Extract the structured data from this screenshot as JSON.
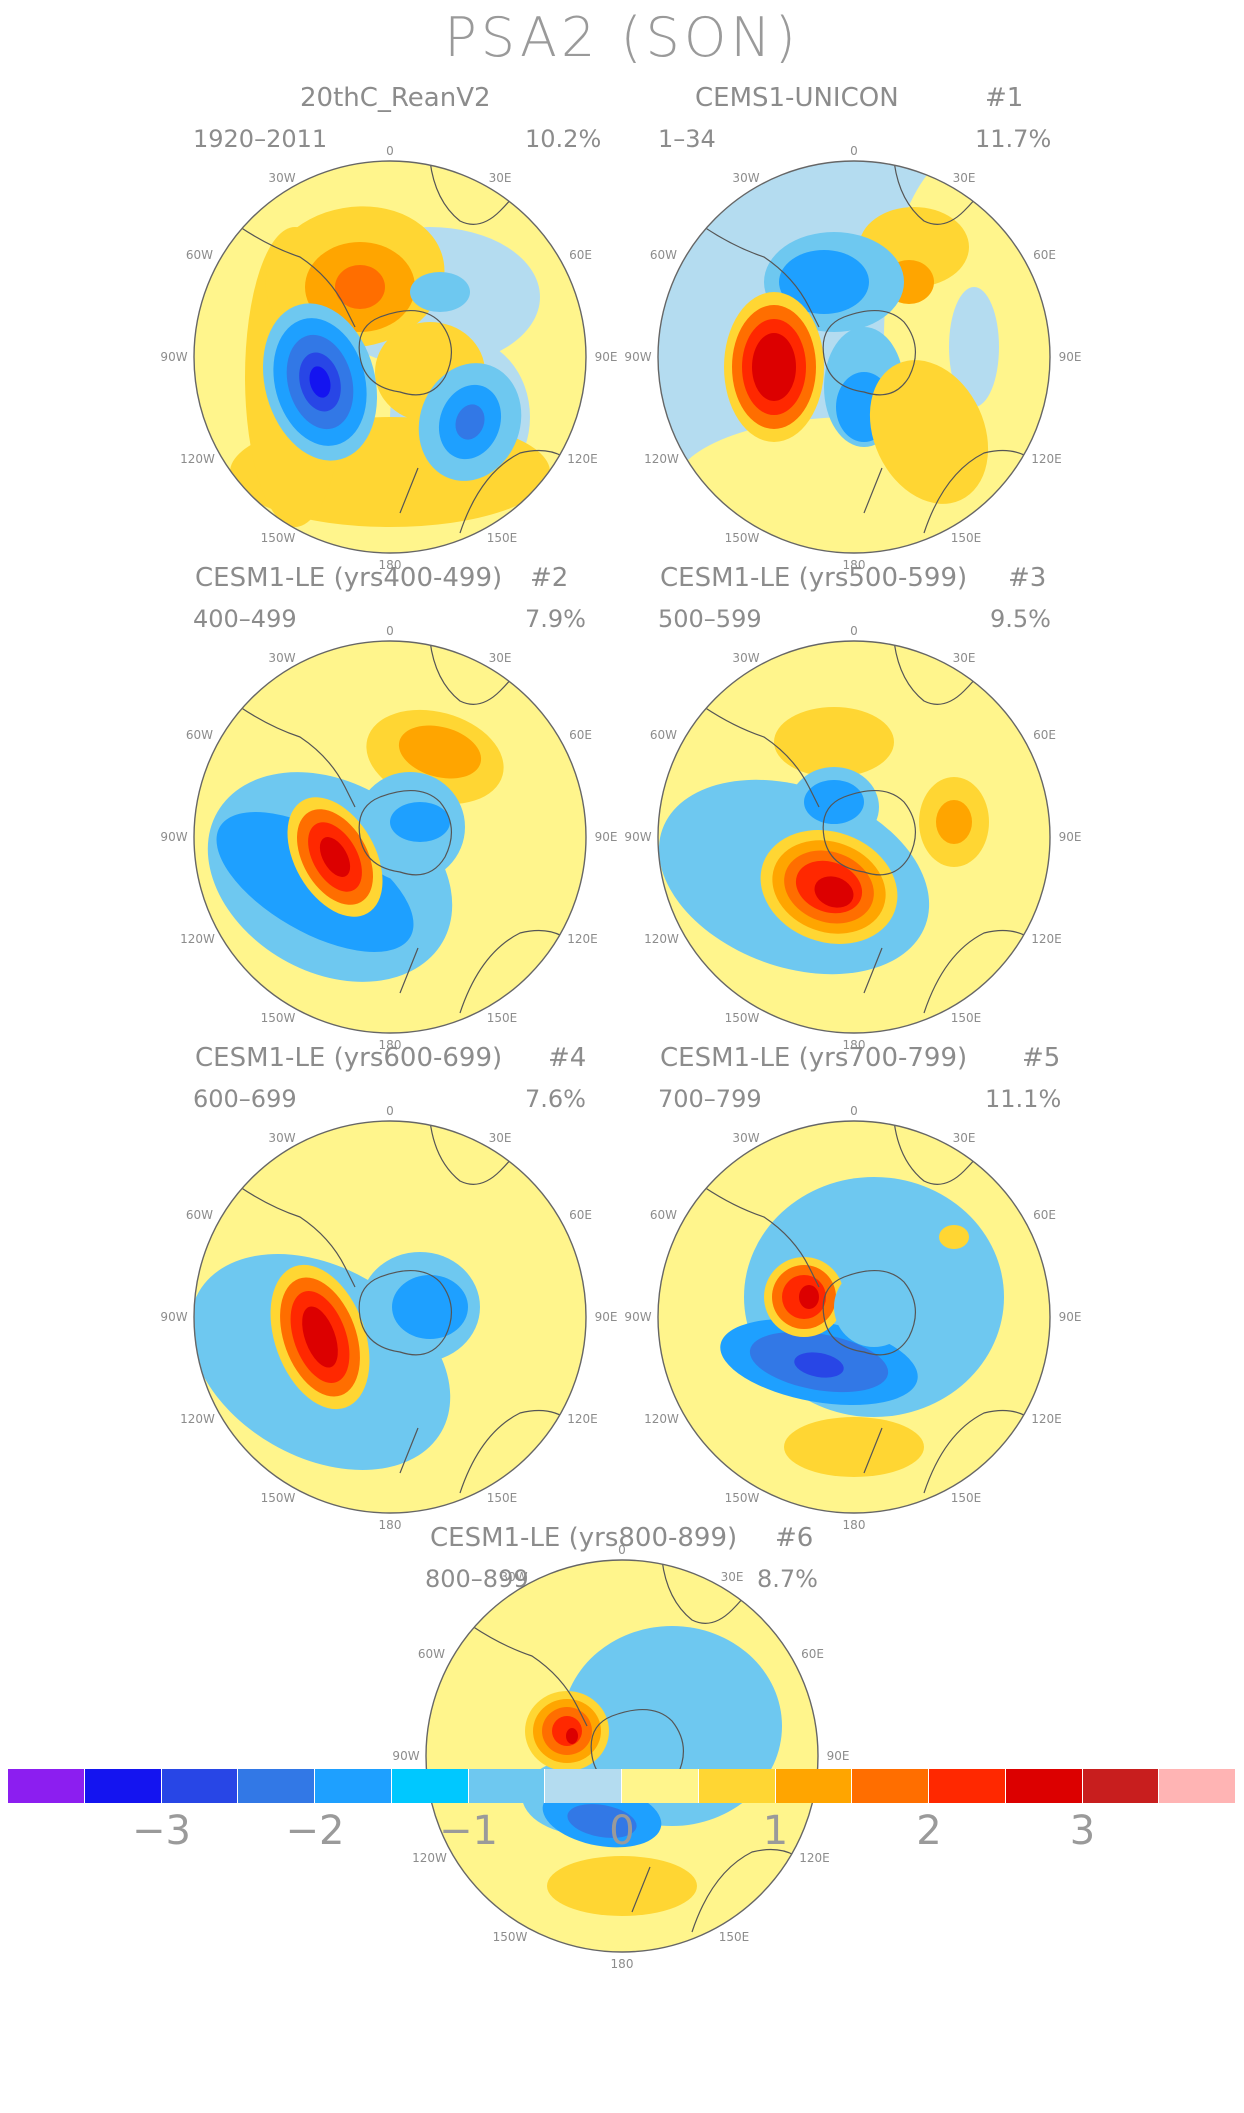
{
  "title": "PSA2 (SON)",
  "panels": [
    {
      "title": "20thC_ReanV2",
      "left": "1920–2011",
      "right": "10.2%",
      "number": "",
      "blobs": [
        {
          "dx": 0,
          "dy": 115,
          "rx": 160,
          "ry": 55,
          "color": "#ffd633",
          "rot": 0
        },
        {
          "dx": -95,
          "dy": 20,
          "rx": 50,
          "ry": 150,
          "color": "#ffd633",
          "rot": 0
        },
        {
          "dx": -35,
          "dy": -80,
          "rx": 90,
          "ry": 70,
          "color": "#ffd633",
          "rot": -10
        },
        {
          "dx": -30,
          "dy": -70,
          "rx": 55,
          "ry": 45,
          "color": "#ffa500",
          "rot": 0
        },
        {
          "dx": -30,
          "dy": -70,
          "rx": 25,
          "ry": 22,
          "color": "#ff6e00",
          "rot": 0
        },
        {
          "dx": 50,
          "dy": -65,
          "rx": 30,
          "ry": 20,
          "color": "#6ec8f0",
          "rot": 0
        },
        {
          "dx": 40,
          "dy": 15,
          "rx": 55,
          "ry": 50,
          "color": "#ffd633",
          "rot": 0
        },
        {
          "dx": -70,
          "dy": 25,
          "rx": 55,
          "ry": 80,
          "color": "#6ec8f0",
          "rot": -15
        },
        {
          "dx": -70,
          "dy": 25,
          "rx": 45,
          "ry": 65,
          "color": "#1ea0ff",
          "rot": -15
        },
        {
          "dx": -70,
          "dy": 25,
          "rx": 32,
          "ry": 48,
          "color": "#3278e6",
          "rot": -15
        },
        {
          "dx": -70,
          "dy": 25,
          "rx": 20,
          "ry": 30,
          "color": "#2846e6",
          "rot": -15
        },
        {
          "dx": -70,
          "dy": 25,
          "rx": 10,
          "ry": 16,
          "color": "#1414f0",
          "rot": -15
        },
        {
          "dx": 80,
          "dy": 65,
          "rx": 50,
          "ry": 60,
          "color": "#6ec8f0",
          "rot": 20
        },
        {
          "dx": 80,
          "dy": 65,
          "rx": 30,
          "ry": 38,
          "color": "#1ea0ff",
          "rot": 20
        },
        {
          "dx": 80,
          "dy": 65,
          "rx": 14,
          "ry": 18,
          "color": "#3278e6",
          "rot": 20
        }
      ]
    },
    {
      "title": "CEMS1-UNICON",
      "left": "1–34",
      "right": "11.7%",
      "number": "#1",
      "blobs": [
        {
          "dx": 60,
          "dy": -110,
          "rx": 55,
          "ry": 40,
          "color": "#ffd633",
          "rot": 0
        },
        {
          "dx": 55,
          "dy": -75,
          "rx": 25,
          "ry": 22,
          "color": "#ffa500",
          "rot": 0
        },
        {
          "dx": 120,
          "dy": -10,
          "rx": 25,
          "ry": 60,
          "color": "#b4dcf0",
          "rot": 0
        },
        {
          "dx": -20,
          "dy": -75,
          "rx": 70,
          "ry": 50,
          "color": "#6ec8f0",
          "rot": 0
        },
        {
          "dx": -30,
          "dy": -75,
          "rx": 45,
          "ry": 32,
          "color": "#1ea0ff",
          "rot": 0
        },
        {
          "dx": -80,
          "dy": 10,
          "rx": 50,
          "ry": 75,
          "color": "#ffd633",
          "rot": 0
        },
        {
          "dx": -80,
          "dy": 10,
          "rx": 42,
          "ry": 62,
          "color": "#ff6e00",
          "rot": 0
        },
        {
          "dx": -80,
          "dy": 10,
          "rx": 32,
          "ry": 48,
          "color": "#ff2800",
          "rot": 0
        },
        {
          "dx": -80,
          "dy": 10,
          "rx": 22,
          "ry": 34,
          "color": "#dc0000",
          "rot": 0
        },
        {
          "dx": 10,
          "dy": 30,
          "rx": 40,
          "ry": 60,
          "color": "#6ec8f0",
          "rot": 0
        },
        {
          "dx": 10,
          "dy": 50,
          "rx": 28,
          "ry": 35,
          "color": "#1ea0ff",
          "rot": 0
        },
        {
          "dx": 75,
          "dy": 75,
          "rx": 55,
          "ry": 75,
          "color": "#ffd633",
          "rot": -25
        }
      ]
    },
    {
      "title": "CESM1-LE (yrs400-499)",
      "left": "400–499",
      "right": "7.9%",
      "number": "#2",
      "blobs": [
        {
          "dx": 45,
          "dy": -80,
          "rx": 70,
          "ry": 45,
          "color": "#ffd633",
          "rot": 15
        },
        {
          "dx": 50,
          "dy": -85,
          "rx": 42,
          "ry": 25,
          "color": "#ffa500",
          "rot": 15
        },
        {
          "dx": -60,
          "dy": 40,
          "rx": 130,
          "ry": 95,
          "color": "#6ec8f0",
          "rot": 30
        },
        {
          "dx": -75,
          "dy": 45,
          "rx": 110,
          "ry": 50,
          "color": "#1ea0ff",
          "rot": 30
        },
        {
          "dx": 20,
          "dy": -10,
          "rx": 55,
          "ry": 55,
          "color": "#6ec8f0",
          "rot": 0
        },
        {
          "dx": 30,
          "dy": -15,
          "rx": 30,
          "ry": 20,
          "color": "#1ea0ff",
          "rot": 0
        },
        {
          "dx": -55,
          "dy": 20,
          "rx": 40,
          "ry": 65,
          "color": "#ffd633",
          "rot": -30
        },
        {
          "dx": -55,
          "dy": 20,
          "rx": 32,
          "ry": 52,
          "color": "#ff6e00",
          "rot": -30
        },
        {
          "dx": -55,
          "dy": 20,
          "rx": 22,
          "ry": 38,
          "color": "#ff2800",
          "rot": -30
        },
        {
          "dx": -55,
          "dy": 20,
          "rx": 12,
          "ry": 22,
          "color": "#dc0000",
          "rot": -30
        }
      ]
    },
    {
      "title": "CESM1-LE (yrs500-599)",
      "left": "500–599",
      "right": "9.5%",
      "number": "#3",
      "blobs": [
        {
          "dx": -20,
          "dy": -95,
          "rx": 60,
          "ry": 35,
          "color": "#ffd633",
          "rot": 0
        },
        {
          "dx": 100,
          "dy": -15,
          "rx": 35,
          "ry": 45,
          "color": "#ffd633",
          "rot": 0
        },
        {
          "dx": 100,
          "dy": -15,
          "rx": 18,
          "ry": 22,
          "color": "#ffa500",
          "rot": 0
        },
        {
          "dx": -60,
          "dy": 40,
          "rx": 140,
          "ry": 90,
          "color": "#6ec8f0",
          "rot": 20
        },
        {
          "dx": -20,
          "dy": -30,
          "rx": 45,
          "ry": 40,
          "color": "#6ec8f0",
          "rot": 0
        },
        {
          "dx": -20,
          "dy": -35,
          "rx": 30,
          "ry": 22,
          "color": "#1ea0ff",
          "rot": 0
        },
        {
          "dx": -25,
          "dy": 50,
          "rx": 70,
          "ry": 55,
          "color": "#ffd633",
          "rot": 20
        },
        {
          "dx": -25,
          "dy": 50,
          "rx": 58,
          "ry": 45,
          "color": "#ffa500",
          "rot": 20
        },
        {
          "dx": -25,
          "dy": 50,
          "rx": 46,
          "ry": 35,
          "color": "#ff6e00",
          "rot": 20
        },
        {
          "dx": -25,
          "dy": 50,
          "rx": 34,
          "ry": 25,
          "color": "#ff2800",
          "rot": 20
        },
        {
          "dx": -20,
          "dy": 55,
          "rx": 20,
          "ry": 15,
          "color": "#dc0000",
          "rot": 20
        }
      ]
    },
    {
      "title": "CESM1-LE (yrs600-699)",
      "left": "600–699",
      "right": "7.6%",
      "number": "#4",
      "blobs": [
        {
          "dx": -70,
          "dy": 45,
          "rx": 140,
          "ry": 95,
          "color": "#6ec8f0",
          "rot": 30
        },
        {
          "dx": 30,
          "dy": -10,
          "rx": 60,
          "ry": 55,
          "color": "#6ec8f0",
          "rot": 0
        },
        {
          "dx": 40,
          "dy": -10,
          "rx": 38,
          "ry": 32,
          "color": "#1ea0ff",
          "rot": 0
        },
        {
          "dx": -70,
          "dy": 20,
          "rx": 45,
          "ry": 75,
          "color": "#ffd633",
          "rot": -20
        },
        {
          "dx": -70,
          "dy": 20,
          "rx": 36,
          "ry": 62,
          "color": "#ff6e00",
          "rot": -20
        },
        {
          "dx": -70,
          "dy": 20,
          "rx": 26,
          "ry": 48,
          "color": "#ff2800",
          "rot": -20
        },
        {
          "dx": -70,
          "dy": 20,
          "rx": 15,
          "ry": 32,
          "color": "#dc0000",
          "rot": -20
        }
      ]
    },
    {
      "title": "CESM1-LE (yrs700-799)",
      "left": "700–799",
      "right": "11.1%",
      "number": "#5",
      "blobs": [
        {
          "dx": 20,
          "dy": -20,
          "rx": 130,
          "ry": 120,
          "color": "#6ec8f0",
          "rot": 0
        },
        {
          "dx": 100,
          "dy": -80,
          "rx": 15,
          "ry": 12,
          "color": "#ffd633",
          "rot": 0
        },
        {
          "dx": 0,
          "dy": 130,
          "rx": 70,
          "ry": 30,
          "color": "#ffd633",
          "rot": 0
        },
        {
          "dx": -35,
          "dy": 45,
          "rx": 100,
          "ry": 40,
          "color": "#1ea0ff",
          "rot": 10
        },
        {
          "dx": -35,
          "dy": 45,
          "rx": 70,
          "ry": 28,
          "color": "#3278e6",
          "rot": 10
        },
        {
          "dx": -35,
          "dy": 48,
          "rx": 25,
          "ry": 12,
          "color": "#2846e6",
          "rot": 10
        },
        {
          "dx": -50,
          "dy": -20,
          "rx": 40,
          "ry": 40,
          "color": "#ffd633",
          "rot": 0
        },
        {
          "dx": -50,
          "dy": -20,
          "rx": 32,
          "ry": 32,
          "color": "#ff6e00",
          "rot": 0
        },
        {
          "dx": -50,
          "dy": -20,
          "rx": 22,
          "ry": 22,
          "color": "#ff2800",
          "rot": 0
        },
        {
          "dx": -45,
          "dy": -20,
          "rx": 10,
          "ry": 12,
          "color": "#dc0000",
          "rot": 0
        },
        {
          "dx": 20,
          "dy": -10,
          "rx": 40,
          "ry": 40,
          "color": "#6ec8f0",
          "rot": 0
        }
      ]
    },
    {
      "title": "CESM1-LE (yrs800-899)",
      "left": "800–899",
      "right": "8.7%",
      "number": "#6",
      "blobs": [
        {
          "dx": 50,
          "dy": -30,
          "rx": 110,
          "ry": 100,
          "color": "#6ec8f0",
          "rot": 0
        },
        {
          "dx": -30,
          "dy": 40,
          "rx": 70,
          "ry": 40,
          "color": "#6ec8f0",
          "rot": 0
        },
        {
          "dx": -20,
          "dy": 60,
          "rx": 60,
          "ry": 30,
          "color": "#1ea0ff",
          "rot": 10
        },
        {
          "dx": -20,
          "dy": 65,
          "rx": 35,
          "ry": 16,
          "color": "#3278e6",
          "rot": 10
        },
        {
          "dx": 0,
          "dy": 130,
          "rx": 75,
          "ry": 30,
          "color": "#ffd633",
          "rot": 0
        },
        {
          "dx": -55,
          "dy": -25,
          "rx": 42,
          "ry": 40,
          "color": "#ffd633",
          "rot": 0
        },
        {
          "dx": -55,
          "dy": -25,
          "rx": 34,
          "ry": 32,
          "color": "#ffa500",
          "rot": 0
        },
        {
          "dx": -55,
          "dy": -25,
          "rx": 25,
          "ry": 24,
          "color": "#ff6e00",
          "rot": 0
        },
        {
          "dx": -55,
          "dy": -25,
          "rx": 15,
          "ry": 15,
          "color": "#ff2800",
          "rot": 0
        },
        {
          "dx": -50,
          "dy": -20,
          "rx": 6,
          "ry": 8,
          "color": "#dc0000",
          "rot": 0
        }
      ]
    }
  ],
  "degree_labels": {
    "top": "0",
    "bottom": "180",
    "n30w": "30W",
    "n30e": "30E",
    "n60w": "60W",
    "n60e": "60E",
    "w90": "90W",
    "e90": "90E",
    "s120w": "120W",
    "s120e": "120E",
    "s150w": "150W",
    "s150e": "150E"
  },
  "colorbar": {
    "colors": [
      "#8c1ef0",
      "#1414f0",
      "#2846e6",
      "#3278e6",
      "#1ea0ff",
      "#00c8ff",
      "#6ec8f0",
      "#b4dcf0",
      "#fff58c",
      "#ffd633",
      "#ffa500",
      "#ff6e00",
      "#ff2800",
      "#dc0000",
      "#c81e1e",
      "#ffb4b4"
    ],
    "labels": [
      "−3",
      "−2",
      "−1",
      "0",
      "1",
      "2",
      "3"
    ]
  }
}
